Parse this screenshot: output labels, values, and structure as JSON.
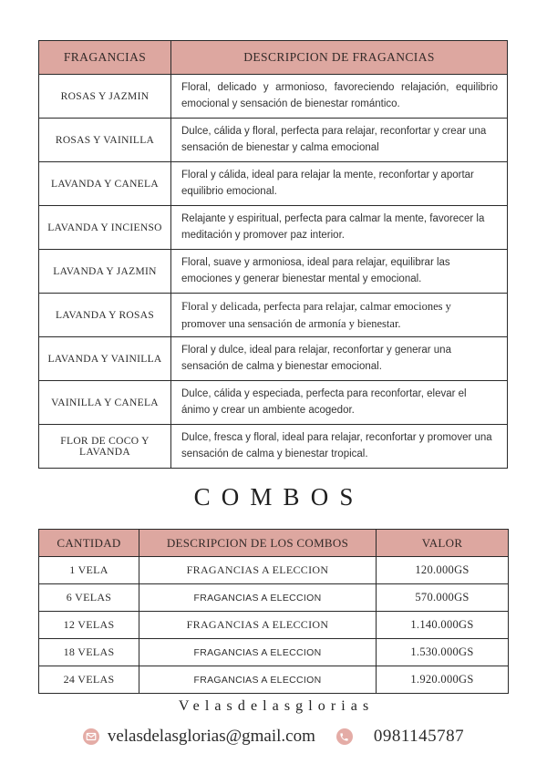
{
  "fragrance_table": {
    "headers": [
      "FRAGANCIAS",
      "DESCRIPCION DE FRAGANCIAS"
    ],
    "rows": [
      {
        "name": "ROSAS Y JAZMIN",
        "description": "Floral, delicado y armonioso, favoreciendo relajación, equilibrio emocional y sensación de bienestar romántico."
      },
      {
        "name": "ROSAS Y VAINILLA",
        "description": "Dulce, cálida y floral, perfecta para relajar, reconfortar y crear una sensación de bienestar y calma emocional"
      },
      {
        "name": "LAVANDA Y CANELA",
        "description": "Floral y cálida, ideal para relajar la mente, reconfortar y aportar equilibrio emocional."
      },
      {
        "name": "LAVANDA Y INCIENSO",
        "description": "Relajante y espiritual, perfecta para calmar la mente, favorecer la meditación y promover paz interior."
      },
      {
        "name": "LAVANDA Y JAZMIN",
        "description": "Floral, suave y armoniosa, ideal para relajar, equilibrar las emociones y generar bienestar mental y emocional."
      },
      {
        "name": "LAVANDA Y ROSAS",
        "description": "Floral y delicada, perfecta para relajar, calmar emociones y promover una sensación de armonía y bienestar."
      },
      {
        "name": "LAVANDA Y VAINILLA",
        "description": "Floral y dulce, ideal para relajar, reconfortar y generar una sensación de calma y bienestar emocional."
      },
      {
        "name": "VAINILLA Y CANELA",
        "description": "Dulce, cálida y especiada, perfecta para reconfortar, elevar el ánimo y crear un ambiente acogedor."
      },
      {
        "name": "FLOR DE COCO Y LAVANDA",
        "description": "Dulce, fresca y floral, ideal para relajar, reconfortar y promover una sensación de calma y bienestar tropical."
      }
    ]
  },
  "combos": {
    "title": "COMBOS",
    "headers": [
      "CANTIDAD",
      "DESCRIPCION DE LOS COMBOS",
      "VALOR"
    ],
    "rows": [
      {
        "quantity": "1 VELA",
        "description": "FRAGANCIAS A ELECCION",
        "value": "120.000GS"
      },
      {
        "quantity": "6 VELAS",
        "description": "FRAGANCIAS A ELECCION",
        "value": "570.000GS"
      },
      {
        "quantity": "12 VELAS",
        "description": "FRAGANCIAS A ELECCION",
        "value": "1.140.000GS"
      },
      {
        "quantity": "18 VELAS",
        "description": "FRAGANCIAS A ELECCION",
        "value": "1.530.000GS"
      },
      {
        "quantity": "24 VELAS",
        "description": "FRAGANCIAS A ELECCION",
        "value": "1.920.000GS"
      }
    ]
  },
  "footer": {
    "brand": "Velasdelasglorias",
    "email": "velasdelasglorias@gmail.com",
    "phone": "0981145787",
    "icons": {
      "email": "envelope-icon",
      "phone": "phone-icon"
    }
  },
  "colors": {
    "header_bg": "#dda7a0",
    "icon_bg": "#e4aca6",
    "border": "#2a2a2a"
  }
}
